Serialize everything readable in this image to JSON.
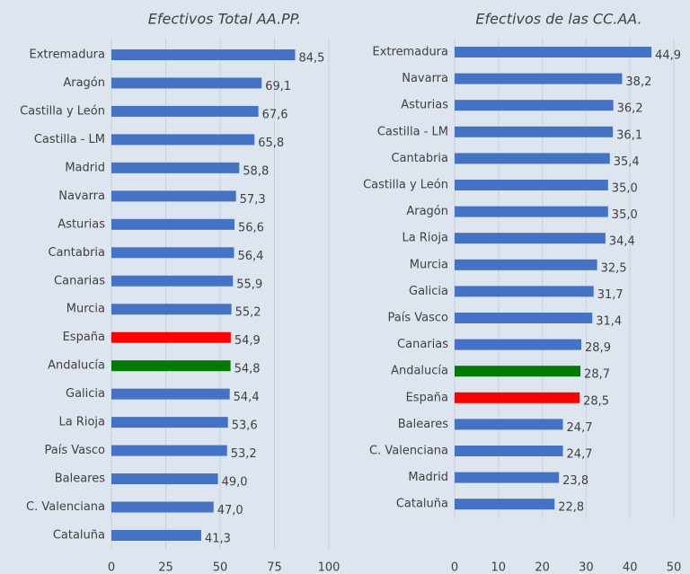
{
  "chart_data": [
    {
      "type": "bar",
      "orientation": "horizontal",
      "title": "Efectivos Total AA.PP.",
      "categories": [
        "Extremadura",
        "Aragón",
        "Castilla y León",
        "Castilla - LM",
        "Madrid",
        "Navarra",
        "Asturias",
        "Cantabria",
        "Canarias",
        "Murcia",
        "España",
        "Andalucía",
        "Galicia",
        "La Rioja",
        "País Vasco",
        "Baleares",
        "C. Valenciana",
        "Cataluña"
      ],
      "values": [
        84.5,
        69.1,
        67.6,
        65.8,
        58.8,
        57.3,
        56.6,
        56.4,
        55.9,
        55.2,
        54.9,
        54.8,
        54.4,
        53.6,
        53.2,
        49.0,
        47.0,
        41.3
      ],
      "value_labels": [
        "84,5",
        "69,1",
        "67,6",
        "65,8",
        "58,8",
        "57,3",
        "56,6",
        "56,4",
        "55,9",
        "55,2",
        "54,9",
        "54,8",
        "54,4",
        "53,6",
        "53,2",
        "49,0",
        "47,0",
        "41,3"
      ],
      "colors": [
        "#4472c4",
        "#4472c4",
        "#4472c4",
        "#4472c4",
        "#4472c4",
        "#4472c4",
        "#4472c4",
        "#4472c4",
        "#4472c4",
        "#4472c4",
        "#ff0000",
        "#007a00",
        "#4472c4",
        "#4472c4",
        "#4472c4",
        "#4472c4",
        "#4472c4",
        "#4472c4"
      ],
      "xlim": [
        0,
        100
      ],
      "xticks": [
        0,
        25,
        50,
        75,
        100
      ],
      "grid": true
    },
    {
      "type": "bar",
      "orientation": "horizontal",
      "title": "Efectivos de las CC.AA.",
      "categories": [
        "Extremadura",
        "Navarra",
        "Asturias",
        "Castilla - LM",
        "Cantabria",
        "Castilla y León",
        "Aragón",
        "La Rioja",
        "Murcia",
        "Galicia",
        "País Vasco",
        "Canarias",
        "Andalucía",
        "España",
        "Baleares",
        "C. Valenciana",
        "Madrid",
        "Cataluña"
      ],
      "values": [
        44.9,
        38.2,
        36.2,
        36.1,
        35.4,
        35.0,
        35.0,
        34.4,
        32.5,
        31.7,
        31.4,
        28.9,
        28.7,
        28.5,
        24.7,
        24.7,
        23.8,
        22.8
      ],
      "value_labels": [
        "44,9",
        "38,2",
        "36,2",
        "36,1",
        "35,4",
        "35,0",
        "35,0",
        "34,4",
        "32,5",
        "31,7",
        "31,4",
        "28,9",
        "28,7",
        "28,5",
        "24,7",
        "24,7",
        "23,8",
        "22,8"
      ],
      "colors": [
        "#4472c4",
        "#4472c4",
        "#4472c4",
        "#4472c4",
        "#4472c4",
        "#4472c4",
        "#4472c4",
        "#4472c4",
        "#4472c4",
        "#4472c4",
        "#4472c4",
        "#4472c4",
        "#007a00",
        "#ff0000",
        "#4472c4",
        "#4472c4",
        "#4472c4",
        "#4472c4"
      ],
      "xlim": [
        0,
        50
      ],
      "xticks": [
        0,
        10,
        20,
        30,
        40,
        50
      ],
      "grid": true
    }
  ]
}
